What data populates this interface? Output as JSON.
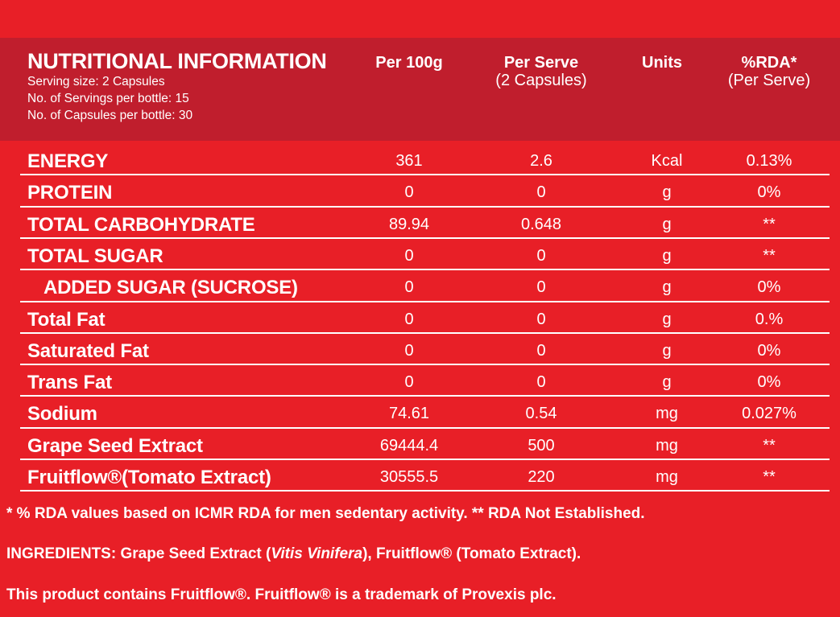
{
  "header": {
    "title": "NUTRITIONAL INFORMATION",
    "lines": [
      "Serving size: 2 Capsules",
      "No. of Servings per bottle: 15",
      "No. of Capsules per bottle: 30"
    ]
  },
  "columns": [
    {
      "label": "Per 100g"
    },
    {
      "label": "Per Serve",
      "sub": "(2 Capsules)"
    },
    {
      "label": "Units"
    },
    {
      "label": "%RDA*",
      "sub": "(Per Serve)"
    }
  ],
  "table": {
    "rows": [
      [
        "ENERGY",
        "361",
        "2.6",
        "Kcal",
        "0.13%"
      ],
      [
        "PROTEIN",
        "0",
        "0",
        "g",
        "0%"
      ],
      [
        "TOTAL CARBOHYDRATE",
        "89.94",
        "0.648",
        "g",
        "**"
      ],
      [
        "TOTAL SUGAR",
        "0",
        "0",
        "g",
        "**"
      ],
      [
        "ADDED SUGAR (SUCROSE)",
        "0",
        "0",
        "g",
        "0%"
      ],
      [
        "Total Fat",
        "0",
        "0",
        "g",
        "0.%"
      ],
      [
        "Saturated Fat",
        "0",
        "0",
        "g",
        "0%"
      ],
      [
        "Trans Fat",
        "0",
        "0",
        "g",
        "0%"
      ],
      [
        "Sodium",
        "74.61",
        "0.54",
        "mg",
        "0.027%"
      ],
      [
        "Grape Seed Extract",
        "69444.4",
        "500",
        "mg",
        "**"
      ],
      [
        "Fruitflow®(Tomato Extract)",
        "30555.5",
        "220",
        "mg",
        "**"
      ]
    ]
  },
  "footer": {
    "note": "* % RDA values based on ICMR RDA for men sedentary activity. ** RDA Not Established.",
    "ingredients": [
      "INGREDIENTS: Grape Seed Extract (",
      "Vitis Vinifera",
      "), Fruitflow® (Tomato Extract)."
    ],
    "trademark": "This product contains Fruitflow®. Fruitflow® is a trademark of Provexis plc."
  }
}
